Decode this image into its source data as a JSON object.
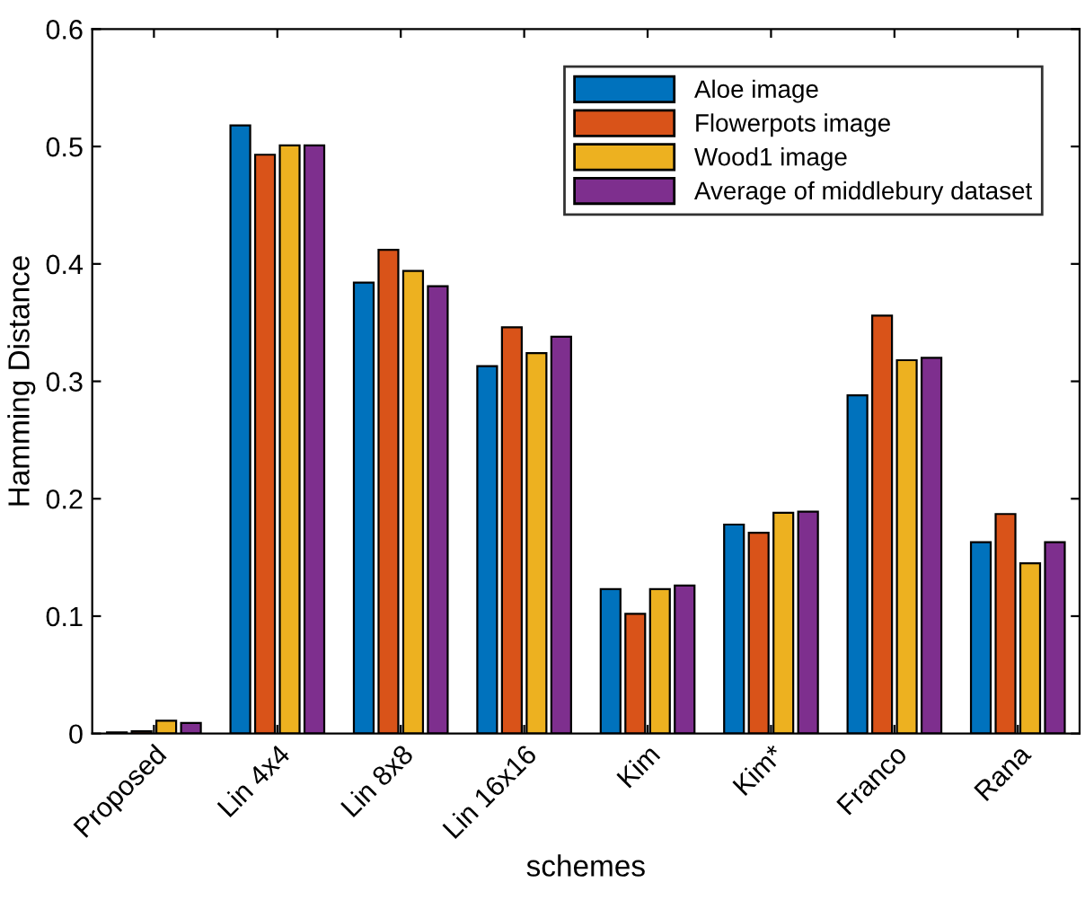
{
  "chart_data": {
    "type": "bar",
    "xlabel": "schemes",
    "ylabel": "Hamming Distance",
    "categories": [
      "Proposed",
      "Lin 4x4",
      "Lin 8x8",
      "Lin 16x16",
      "Kim",
      "Kim*",
      "Franco",
      "Rana"
    ],
    "series": [
      {
        "name": "Aloe image",
        "color": "#0072bd",
        "values": [
          0.001,
          0.518,
          0.384,
          0.313,
          0.123,
          0.178,
          0.288,
          0.163
        ]
      },
      {
        "name": "Flowerpots image",
        "color": "#d95319",
        "values": [
          0.002,
          0.493,
          0.412,
          0.346,
          0.102,
          0.171,
          0.356,
          0.187
        ]
      },
      {
        "name": "Wood1 image",
        "color": "#edb120",
        "values": [
          0.011,
          0.501,
          0.394,
          0.324,
          0.123,
          0.188,
          0.318,
          0.145
        ]
      },
      {
        "name": "Average of middlebury dataset",
        "color": "#7e2f8e",
        "values": [
          0.009,
          0.501,
          0.381,
          0.338,
          0.126,
          0.189,
          0.32,
          0.163
        ]
      }
    ],
    "ylim": [
      0,
      0.6
    ],
    "yticks": [
      0,
      0.1,
      0.2,
      0.3,
      0.4,
      0.5,
      0.6
    ],
    "grid": false,
    "legend": "top right"
  }
}
